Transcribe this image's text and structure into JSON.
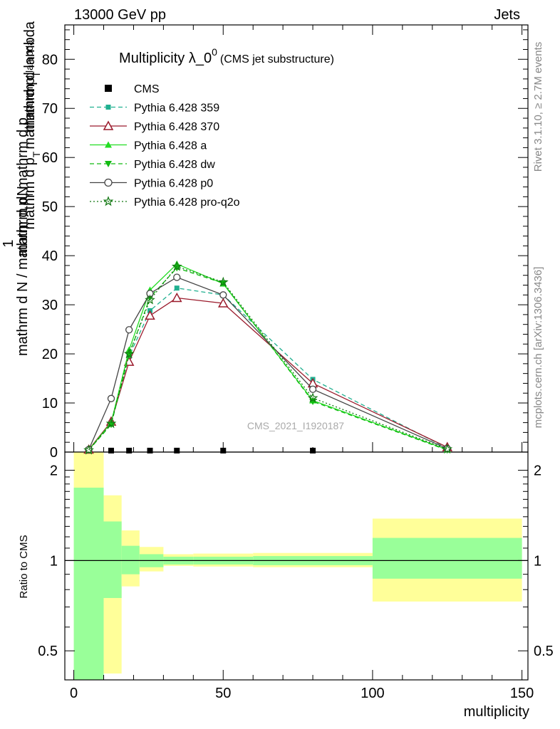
{
  "header": {
    "left": "13000 GeV pp",
    "right": "Jets"
  },
  "side": {
    "rivet": "Rivet 3.1.10, ≥ 2.7M events",
    "mcplots": "mcplots.cern.ch [arXiv:1306.3436]"
  },
  "main_plot": {
    "title_main": "Multiplicity λ_0",
    "title_sup": "0",
    "title_sub": "(CMS jet substructure)",
    "ylabel_top": "mathrm dN",
    "ylabel_bottom": "mathrm d p",
    "ylabel_bottom2": "T",
    "ylabel_bottom3": "mathrm d p",
    "ylabel_bottom4": "T",
    "ylabel_mid": "mathrm d lambda",
    "ylabel_factor": "1",
    "ylabel_den": "mathrm d N / mathrm d p",
    "ylabel_den2": "T",
    "ylabel_den3": "mathrm d p",
    "ylabel_den4": "mathrm d lambda",
    "watermark": "CMS_2021_I1920187"
  },
  "ratio_plot": {
    "ylabel": "Ratio to CMS"
  },
  "xlabel": "multiplicity",
  "colors": {
    "cms": "#000000",
    "p359": "#20b090",
    "p370": "#9b1b2c",
    "pa": "#22dd22",
    "pdw": "#11bb11",
    "pp0": "#444444",
    "pq2o": "#117711",
    "band_inner": "#99ff99",
    "band_outer": "#ffff99"
  },
  "chart_data": {
    "type": "line",
    "xlabel": "multiplicity",
    "xlim": [
      -3,
      152
    ],
    "ylim": [
      0,
      87
    ],
    "x_ticks": [
      0,
      50,
      100,
      150
    ],
    "y_ticks": [
      0,
      10,
      20,
      30,
      40,
      50,
      60,
      70,
      80
    ],
    "legend_position": "top-left",
    "x": [
      5,
      12.5,
      18.5,
      25.5,
      34.5,
      50,
      80,
      125
    ],
    "series": [
      {
        "name": "CMS",
        "marker": "square",
        "values": [
          0.3,
          0.3,
          0.3,
          0.3,
          0.3,
          0.3,
          0.3,
          null
        ]
      },
      {
        "name": "Pythia 6.428 359",
        "marker": "square-small",
        "dash": "dashed",
        "values": [
          0.5,
          6,
          19.5,
          28.8,
          33.4,
          32,
          14.8,
          0.8
        ]
      },
      {
        "name": "Pythia 6.428 370",
        "marker": "triangle-open",
        "dash": "solid",
        "values": [
          0.5,
          6.2,
          18.4,
          27.8,
          31.4,
          30.3,
          14,
          1
        ]
      },
      {
        "name": "Pythia 6.428 a",
        "marker": "triangle-up",
        "dash": "solid",
        "values": [
          0.4,
          6,
          20.8,
          33,
          38.3,
          34.3,
          10.5,
          0.5
        ]
      },
      {
        "name": "Pythia 6.428 dw",
        "marker": "triangle-down",
        "dash": "dashed",
        "values": [
          0.4,
          5.6,
          19.8,
          31.5,
          37.5,
          34.4,
          10.3,
          0.4
        ]
      },
      {
        "name": "Pythia 6.428 p0",
        "marker": "circle-open",
        "dash": "solid",
        "values": [
          0.5,
          10.9,
          24.9,
          32.3,
          35.6,
          32.0,
          12.8,
          0.7
        ]
      },
      {
        "name": "Pythia 6.428 pro-q2o",
        "marker": "star",
        "dash": "dotted",
        "values": [
          0.4,
          5.8,
          20.0,
          31.0,
          37.8,
          34.6,
          11.0,
          0.6
        ]
      }
    ],
    "ratio": {
      "ylabel": "Ratio to CMS",
      "ylim": [
        0.4,
        2.3
      ],
      "y_ticks": [
        0.5,
        1,
        2
      ],
      "bins": [
        {
          "lo": 0,
          "hi": 10,
          "inner": [
            0.4,
            1.75
          ],
          "outer": [
            0.4,
            2.3
          ]
        },
        {
          "lo": 10,
          "hi": 16,
          "inner": [
            0.75,
            1.35
          ],
          "outer": [
            0.42,
            1.65
          ]
        },
        {
          "lo": 16,
          "hi": 22,
          "inner": [
            0.9,
            1.12
          ],
          "outer": [
            0.82,
            1.26
          ]
        },
        {
          "lo": 22,
          "hi": 30,
          "inner": [
            0.95,
            1.05
          ],
          "outer": [
            0.92,
            1.11
          ]
        },
        {
          "lo": 30,
          "hi": 40,
          "inner": [
            0.97,
            1.03
          ],
          "outer": [
            0.96,
            1.05
          ]
        },
        {
          "lo": 40,
          "hi": 60,
          "inner": [
            0.97,
            1.03
          ],
          "outer": [
            0.955,
            1.055
          ]
        },
        {
          "lo": 60,
          "hi": 100,
          "inner": [
            0.965,
            1.035
          ],
          "outer": [
            0.95,
            1.06
          ]
        },
        {
          "lo": 100,
          "hi": 150,
          "inner": [
            0.87,
            1.19
          ],
          "outer": [
            0.73,
            1.38
          ]
        }
      ]
    }
  }
}
